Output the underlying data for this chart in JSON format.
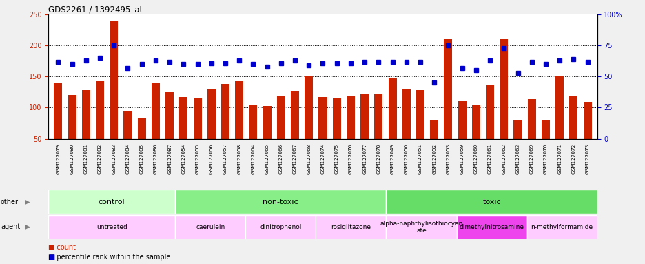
{
  "title": "GDS2261 / 1392495_at",
  "samples": [
    "GSM127079",
    "GSM127080",
    "GSM127081",
    "GSM127082",
    "GSM127083",
    "GSM127084",
    "GSM127085",
    "GSM127086",
    "GSM127087",
    "GSM127054",
    "GSM127055",
    "GSM127056",
    "GSM127057",
    "GSM127058",
    "GSM127064",
    "GSM127065",
    "GSM127066",
    "GSM127067",
    "GSM127068",
    "GSM127074",
    "GSM127075",
    "GSM127076",
    "GSM127077",
    "GSM127078",
    "GSM127049",
    "GSM127050",
    "GSM127051",
    "GSM127052",
    "GSM127053",
    "GSM127059",
    "GSM127060",
    "GSM127061",
    "GSM127062",
    "GSM127063",
    "GSM127069",
    "GSM127070",
    "GSM127071",
    "GSM127072",
    "GSM127073"
  ],
  "count": [
    140,
    120,
    128,
    143,
    240,
    95,
    83,
    140,
    125,
    117,
    115,
    130,
    138,
    143,
    104,
    103,
    118,
    126,
    150,
    117,
    116,
    119,
    123,
    123,
    148,
    131,
    128,
    79,
    210,
    111,
    104,
    136,
    210,
    81,
    114,
    80,
    150,
    119,
    108
  ],
  "percentile": [
    62,
    60,
    63,
    65,
    75,
    57,
    60,
    63,
    62,
    60,
    60,
    61,
    61,
    63,
    60,
    58,
    61,
    63,
    59,
    61,
    61,
    61,
    62,
    62,
    62,
    62,
    62,
    45,
    75,
    57,
    55,
    63,
    73,
    53,
    62,
    60,
    63,
    64,
    62
  ],
  "bar_color": "#cc2200",
  "dot_color": "#0000cc",
  "ylim_left": [
    50,
    250
  ],
  "ylim_right": [
    0,
    100
  ],
  "yticks_left": [
    50,
    100,
    150,
    200,
    250
  ],
  "yticks_right": [
    0,
    25,
    50,
    75,
    100
  ],
  "hlines": [
    100,
    150,
    200
  ],
  "groups": [
    {
      "label": "control",
      "start": 0,
      "end": 9,
      "color": "#ccffcc"
    },
    {
      "label": "non-toxic",
      "start": 9,
      "end": 24,
      "color": "#88ee88"
    },
    {
      "label": "toxic",
      "start": 24,
      "end": 39,
      "color": "#66dd66"
    }
  ],
  "agents": [
    {
      "label": "untreated",
      "start": 0,
      "end": 9,
      "color": "#ffccff"
    },
    {
      "label": "caerulein",
      "start": 9,
      "end": 14,
      "color": "#ffccff"
    },
    {
      "label": "dinitrophenol",
      "start": 14,
      "end": 19,
      "color": "#ffccff"
    },
    {
      "label": "rosiglitazone",
      "start": 19,
      "end": 24,
      "color": "#ffccff"
    },
    {
      "label": "alpha-naphthylisothiocyan\nate",
      "start": 24,
      "end": 29,
      "color": "#ffccff"
    },
    {
      "label": "dimethylnitrosamine",
      "start": 29,
      "end": 34,
      "color": "#ee44ee"
    },
    {
      "label": "n-methylformamide",
      "start": 34,
      "end": 39,
      "color": "#ffccff"
    }
  ],
  "legend_count_color": "#cc2200",
  "legend_dot_color": "#0000cc",
  "fig_bg": "#f0f0f0",
  "plot_bg": "#ffffff",
  "xticklabel_bg": "#e8e8e8"
}
